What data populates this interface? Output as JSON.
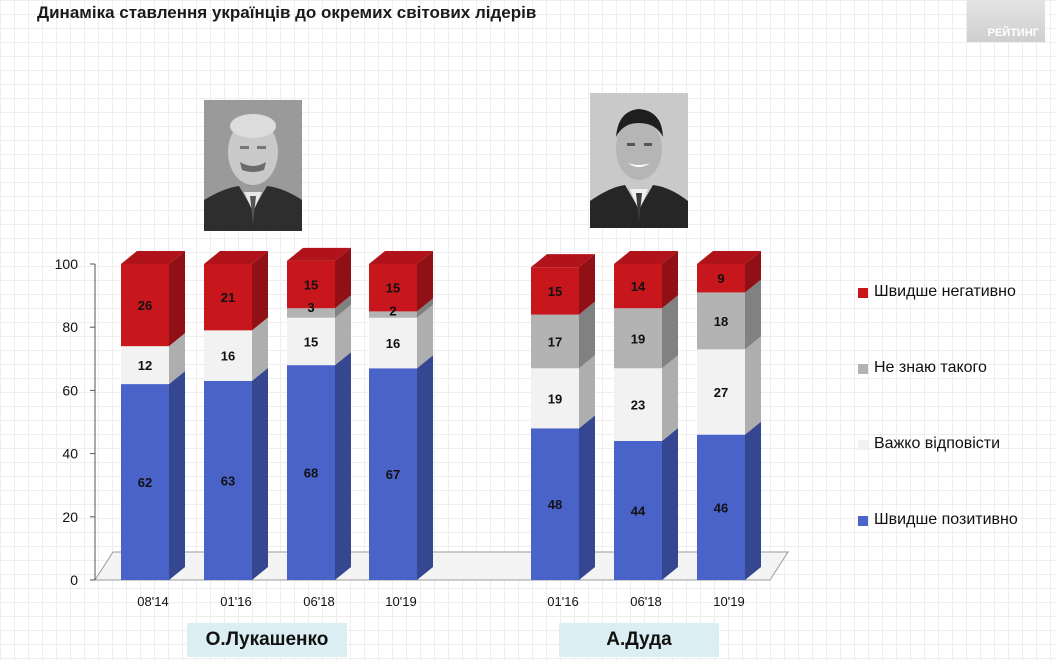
{
  "title": "Динаміка ставлення українців до окремих світових лідерів",
  "brand": "РЕЙТИНГ",
  "legend": [
    {
      "label": "Швидше негативно",
      "color": "#c8161d"
    },
    {
      "label": "Не знаю такого",
      "color": "#b3b3b3"
    },
    {
      "label": "Важко відповісти",
      "color": "#f2f2f2"
    },
    {
      "label": "Швидше позитивно",
      "color": "#4a63c9"
    }
  ],
  "groups": [
    {
      "label": "О.Лукашенко"
    },
    {
      "label": "А.Дуда"
    }
  ],
  "chart_data": {
    "type": "bar",
    "stacked": true,
    "ylim": [
      0,
      100
    ],
    "yticks": [
      "0",
      "20",
      "40",
      "60",
      "80",
      "100"
    ],
    "groups": [
      "О.Лукашенко",
      "А.Дуда"
    ],
    "categories": [
      "08'14",
      "01'16",
      "06'18",
      "10'19",
      "01'16",
      "06'18",
      "10'19"
    ],
    "series": [
      {
        "name": "Швидше позитивно",
        "color": "#4a63c9",
        "values": [
          62,
          63,
          68,
          67,
          48,
          44,
          46
        ]
      },
      {
        "name": "Важко відповісти",
        "color": "#f2f2f2",
        "values": [
          12,
          16,
          15,
          16,
          19,
          23,
          27
        ]
      },
      {
        "name": "Не знаю такого",
        "color": "#b3b3b3",
        "values": [
          0,
          0,
          3,
          2,
          17,
          19,
          18
        ]
      },
      {
        "name": "Швидше негативно",
        "color": "#c8161d",
        "values": [
          26,
          21,
          15,
          15,
          15,
          14,
          9
        ]
      }
    ],
    "legend_position": "right"
  }
}
